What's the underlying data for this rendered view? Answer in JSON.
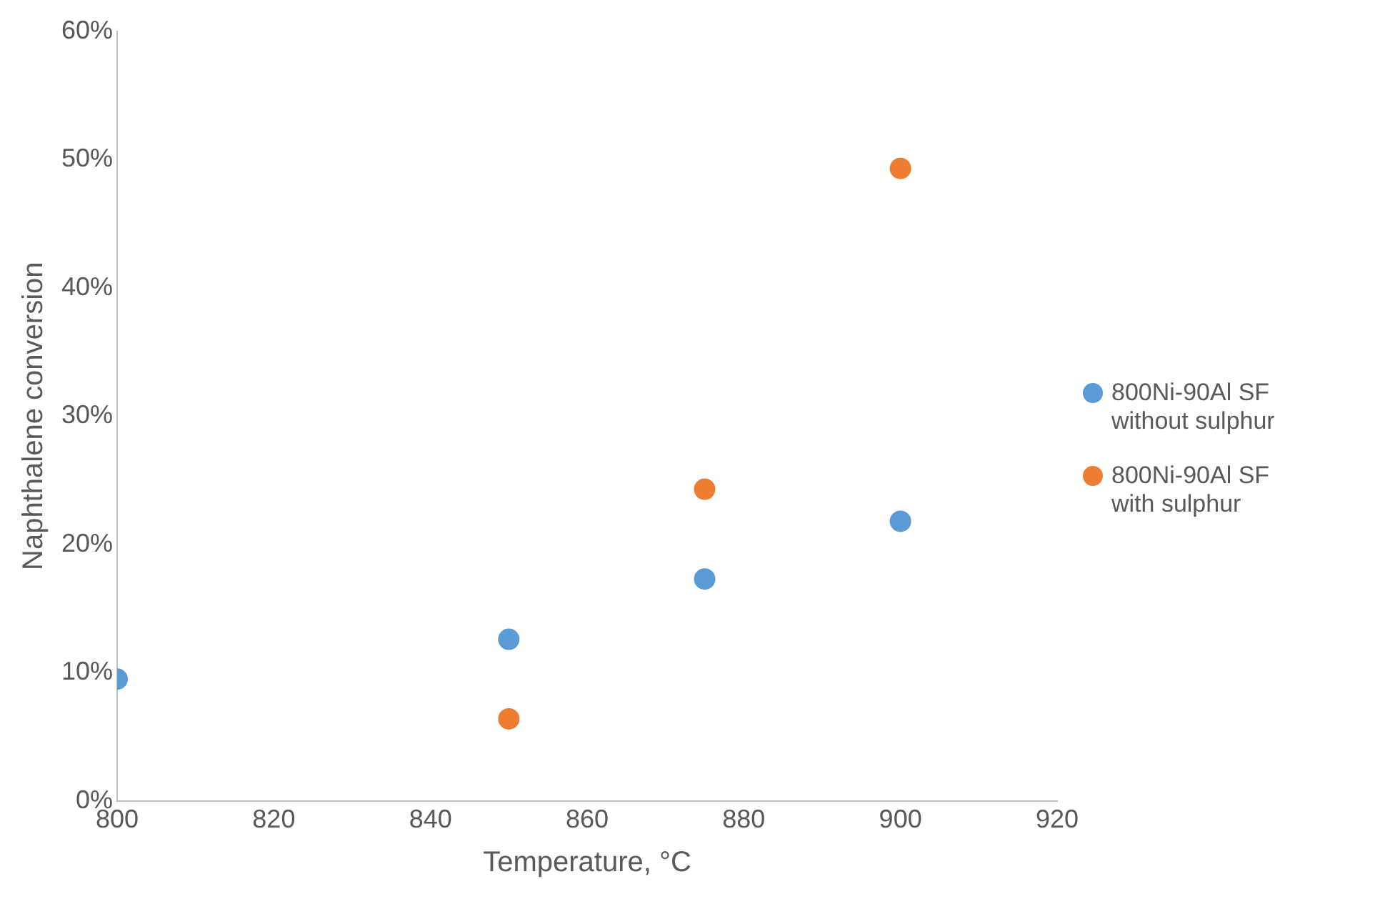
{
  "chart_data": {
    "type": "scatter",
    "xlabel": "Temperature, °C",
    "ylabel": "Naphthalene conversion",
    "series": [
      {
        "name": "800Ni-90Al SF without sulphur",
        "color": "#5b9bd5",
        "x": [
          800,
          850,
          875,
          900
        ],
        "values": [
          9.5,
          12.6,
          17.3,
          21.8
        ]
      },
      {
        "name": "800Ni-90Al SF with sulphur",
        "color": "#ed7d31",
        "x": [
          850,
          875,
          900
        ],
        "values": [
          6.4,
          24.3,
          49.3
        ]
      }
    ],
    "xlim": [
      800,
      920
    ],
    "xticks": [
      800,
      820,
      840,
      860,
      880,
      900,
      920
    ],
    "ylim": [
      0,
      60
    ],
    "yticks": [
      {
        "value": 0,
        "label": "0%"
      },
      {
        "value": 10,
        "label": "10%"
      },
      {
        "value": 20,
        "label": "20%"
      },
      {
        "value": 30,
        "label": "30%"
      },
      {
        "value": 40,
        "label": "40%"
      },
      {
        "value": 50,
        "label": "50%"
      },
      {
        "value": 60,
        "label": "60%"
      }
    ],
    "grid": false,
    "legend": "right",
    "marker": "circle"
  }
}
